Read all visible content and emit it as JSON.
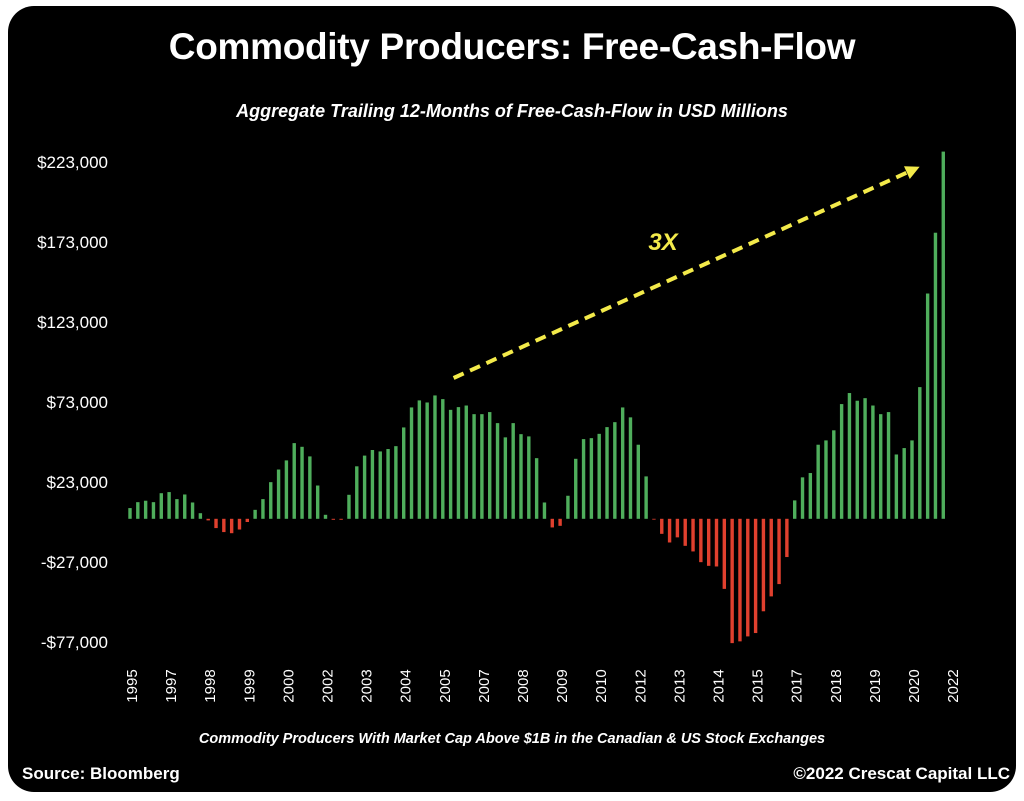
{
  "chart_data": {
    "type": "bar",
    "title": "Commodity Producers: Free-Cash-Flow",
    "subtitle": "Aggregate Trailing 12-Months of Free-Cash-Flow in USD Millions",
    "xlabel": "",
    "ylabel": "",
    "ylim": [
      -77000,
      223000
    ],
    "grid": false,
    "legend": "none",
    "y_ticks": [
      223000,
      173000,
      123000,
      73000,
      23000,
      -27000,
      -77000
    ],
    "y_tick_labels": [
      "$223,000",
      "$173,000",
      "$123,000",
      "$73,000",
      "$23,000",
      "-$27,000",
      "-$77,000"
    ],
    "x_tick_labels": [
      "1995",
      "1997",
      "1998",
      "1999",
      "2000",
      "2002",
      "2003",
      "2004",
      "2005",
      "2007",
      "2008",
      "2009",
      "2010",
      "2012",
      "2013",
      "2014",
      "2015",
      "2017",
      "2018",
      "2019",
      "2020",
      "2022"
    ],
    "x_tick_every": 5,
    "positive_color": "#4fae5c",
    "negative_color": "#e0402e",
    "values": [
      6700,
      10400,
      11300,
      10400,
      16000,
      16700,
      12300,
      15200,
      10200,
      3500,
      -1000,
      -5800,
      -8300,
      -9000,
      -6700,
      -2000,
      5600,
      12300,
      22900,
      30800,
      36500,
      47300,
      45000,
      39000,
      20800,
      2500,
      -600,
      -600,
      15000,
      32800,
      39500,
      43000,
      42100,
      43600,
      45400,
      57100,
      69600,
      74000,
      72700,
      77100,
      74800,
      68100,
      69800,
      70800,
      65400,
      65400,
      66700,
      59800,
      50900,
      59800,
      52900,
      51500,
      37900,
      10200,
      -5400,
      -4400,
      14400,
      37500,
      49800,
      50400,
      53100,
      57300,
      60400,
      69600,
      63400,
      46300,
      26500,
      -500,
      -9400,
      -14800,
      -11600,
      -16900,
      -20400,
      -27100,
      -29400,
      -29800,
      -43800,
      -77700,
      -76600,
      -73500,
      -71400,
      -57800,
      -48500,
      -40800,
      -23900,
      11500,
      25900,
      28600,
      46300,
      49000,
      55300,
      71700,
      78600,
      73800,
      75400,
      70800,
      65400,
      66700,
      40200,
      44200,
      49000,
      82300,
      140800,
      178800,
      229500
    ],
    "annotations": [
      {
        "text": "3X",
        "type": "dashed-arrow",
        "color": "#f3ea4a",
        "from_index": 41,
        "to_index": 102,
        "from_value": 88000,
        "to_value": 220000
      }
    ],
    "footnote": "Commodity Producers With Market Cap Above $1B in the Canadian & US Stock Exchanges"
  },
  "footer": {
    "source": "Source: Bloomberg",
    "copyright": "©2022 Crescat Capital LLC"
  }
}
